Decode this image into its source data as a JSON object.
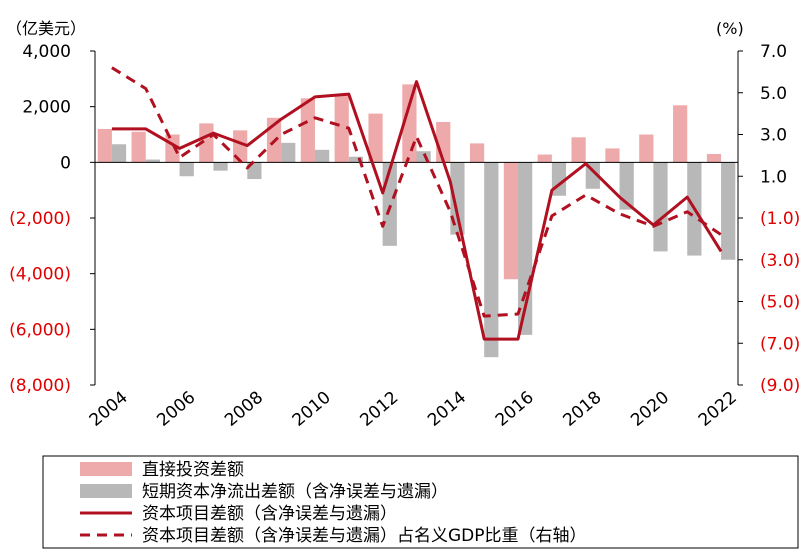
{
  "chart_data": {
    "type": "bar+line",
    "left_axis_unit": "（亿美元）",
    "right_axis_unit": "(%)",
    "years": [
      2004,
      2005,
      2006,
      2007,
      2008,
      2009,
      2010,
      2011,
      2012,
      2013,
      2014,
      2015,
      2016,
      2017,
      2018,
      2019,
      2020,
      2021,
      2022
    ],
    "x_tick_labels": [
      "2004",
      "2006",
      "2008",
      "2010",
      "2012",
      "2014",
      "2016",
      "2018",
      "2020",
      "2022"
    ],
    "ylim_left": [
      -8000,
      4000
    ],
    "ylim_right": [
      -9.0,
      7.0
    ],
    "left_ticks": [
      {
        "value": 4000,
        "label": "4,000",
        "color": "#000000"
      },
      {
        "value": 2000,
        "label": "2,000",
        "color": "#000000"
      },
      {
        "value": 0,
        "label": "0",
        "color": "#000000"
      },
      {
        "value": -2000,
        "label": "(2,000)",
        "color": "#e00000"
      },
      {
        "value": -4000,
        "label": "(4,000)",
        "color": "#e00000"
      },
      {
        "value": -6000,
        "label": "(6,000)",
        "color": "#e00000"
      },
      {
        "value": -8000,
        "label": "(8,000)",
        "color": "#e00000"
      }
    ],
    "right_ticks": [
      {
        "value": 7.0,
        "label": "7.0",
        "color": "#000000"
      },
      {
        "value": 5.0,
        "label": "5.0",
        "color": "#000000"
      },
      {
        "value": 3.0,
        "label": "3.0",
        "color": "#000000"
      },
      {
        "value": 1.0,
        "label": "1.0",
        "color": "#000000"
      },
      {
        "value": -1.0,
        "label": "(1.0)",
        "color": "#e00000"
      },
      {
        "value": -3.0,
        "label": "(3.0)",
        "color": "#e00000"
      },
      {
        "value": -5.0,
        "label": "(5.0)",
        "color": "#e00000"
      },
      {
        "value": -7.0,
        "label": "(7.0)",
        "color": "#e00000"
      },
      {
        "value": -9.0,
        "label": "(9.0)",
        "color": "#e00000"
      }
    ],
    "series": [
      {
        "name": "直接投资差额",
        "kind": "bar",
        "axis": "left",
        "color": "#eeaaaa",
        "values": [
          1200,
          1100,
          1000,
          1400,
          1150,
          1600,
          2300,
          2450,
          1750,
          2800,
          1450,
          680,
          -4200,
          280,
          900,
          500,
          1000,
          2050,
          300
        ]
      },
      {
        "name": "短期资本净流出差额（含净误差与遗漏）",
        "kind": "bar",
        "axis": "left",
        "color": "#b8b8b8",
        "values": [
          650,
          100,
          -500,
          -300,
          -600,
          700,
          450,
          200,
          -3000,
          400,
          -2600,
          -7000,
          -6200,
          -1200,
          -950,
          -1700,
          -3200,
          -3350,
          -3500
        ]
      },
      {
        "name": "资本项目差额（含净误差与遗漏）",
        "kind": "line",
        "axis": "left",
        "color": "#b01020",
        "style": "solid",
        "values": [
          1200,
          1200,
          500,
          1050,
          600,
          1550,
          2350,
          2450,
          -1100,
          2900,
          -700,
          -6350,
          -6350,
          -1000,
          -50,
          -1250,
          -2250,
          -1250,
          -3200
        ]
      },
      {
        "name": "资本项目差额（含净误差与遗漏）占名义GDP比重（右轴）",
        "kind": "line",
        "axis": "right",
        "color": "#b01020",
        "style": "dashed",
        "values": [
          6.2,
          5.2,
          1.9,
          3.0,
          1.4,
          3.0,
          3.8,
          3.3,
          -1.4,
          2.9,
          -0.7,
          -5.7,
          -5.6,
          -0.9,
          0.1,
          -0.8,
          -1.4,
          -0.7,
          -1.8
        ]
      }
    ],
    "legend": [
      {
        "label": "直接投资差额",
        "swatch": "bar",
        "color": "#eeaaaa"
      },
      {
        "label": "短期资本净流出差额（含净误差与遗漏）",
        "swatch": "bar",
        "color": "#b8b8b8"
      },
      {
        "label": "资本项目差额（含净误差与遗漏）",
        "swatch": "solid",
        "color": "#b01020"
      },
      {
        "label": "资本项目差额（含净误差与遗漏）占名义GDP比重（右轴）",
        "swatch": "dashed",
        "color": "#b01020"
      }
    ],
    "legend_placement": "bottom",
    "grid": false
  }
}
